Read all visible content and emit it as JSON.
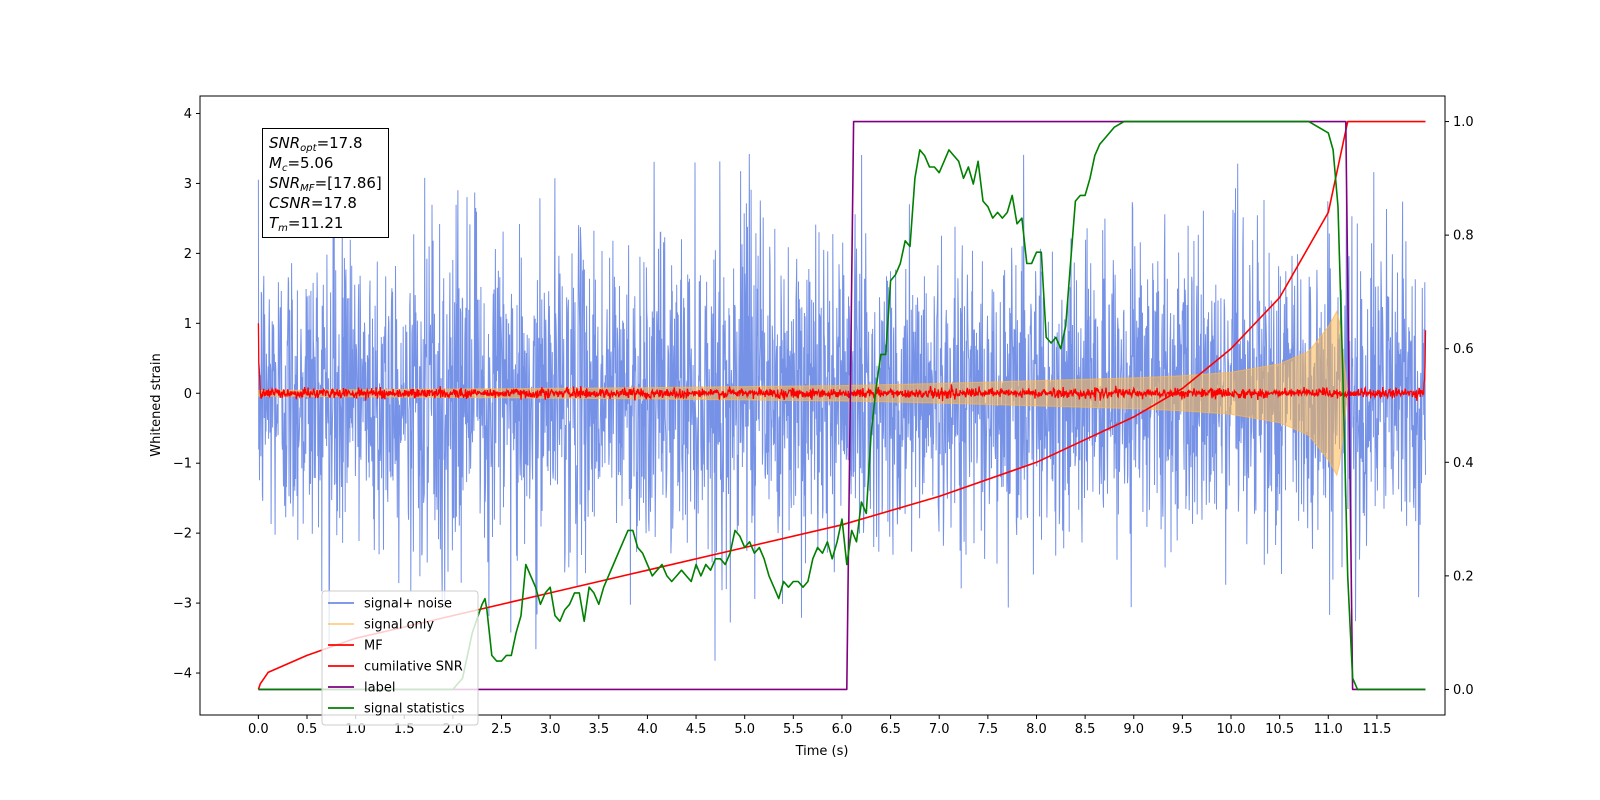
{
  "chart_data": {
    "type": "line",
    "title": "",
    "xlabel": "Time (s)",
    "ylabel": "Whitened strain",
    "ylabel_right": "",
    "xlim": [
      -0.6,
      12.2
    ],
    "ylim": [
      -4.6,
      4.25
    ],
    "ylim_right": [
      -0.045,
      1.045
    ],
    "grid": false,
    "legend_position": "lower-left",
    "x_ticks": [
      "0.0",
      "0.5",
      "1.0",
      "1.5",
      "2.0",
      "2.5",
      "3.0",
      "3.5",
      "4.0",
      "4.5",
      "5.0",
      "5.5",
      "6.0",
      "6.5",
      "7.0",
      "7.5",
      "8.0",
      "8.5",
      "9.0",
      "9.5",
      "10.0",
      "10.5",
      "11.0",
      "11.5"
    ],
    "y_ticks": [
      "−4",
      "−3",
      "−2",
      "−1",
      "0",
      "1",
      "2",
      "3",
      "4"
    ],
    "y_ticks_right": [
      "0.0",
      "0.2",
      "0.4",
      "0.6",
      "0.8",
      "1.0"
    ],
    "annotation": {
      "snr_opt_base": "SNR",
      "snr_opt_sub": "opt",
      "snr_opt_value": "=17.8",
      "mc_base": "M",
      "mc_sub": "c",
      "mc_value": "=5.06",
      "snr_mf_base": "SNR",
      "snr_mf_sub": "MF",
      "snr_mf_value": "=[17.86]",
      "csnr_base": "CSNR",
      "csnr_value": "=17.8",
      "tm_base": "T",
      "tm_sub": "m",
      "tm_value": "=11.21"
    },
    "series": [
      {
        "name": "signal+ noise",
        "color": "#6f8ce6",
        "axis": "left",
        "kind": "noise",
        "envelope_peak": 3.5,
        "x_range": [
          0.0,
          12.0
        ]
      },
      {
        "name": "signal only",
        "color": "#ffb84d",
        "axis": "left",
        "kind": "chirp",
        "x": [
          0.0,
          2.0,
          4.0,
          6.0,
          7.0,
          8.0,
          9.0,
          9.5,
          10.0,
          10.5,
          10.8,
          11.0,
          11.1,
          11.2
        ],
        "amplitude": [
          0.04,
          0.06,
          0.08,
          0.11,
          0.14,
          0.18,
          0.22,
          0.25,
          0.3,
          0.42,
          0.6,
          0.95,
          1.2,
          0.0
        ]
      },
      {
        "name": "MF",
        "color": "#ff0000",
        "axis": "left",
        "kind": "mf",
        "spike_start": 1.0,
        "spike_end": 0.9,
        "x_range": [
          0.0,
          12.0
        ]
      },
      {
        "name": "cumilative SNR",
        "color": "#ff0000",
        "axis": "right",
        "x": [
          0.0,
          0.02,
          0.1,
          0.5,
          1.0,
          1.5,
          2.0,
          3.0,
          4.0,
          5.0,
          6.0,
          7.0,
          8.0,
          9.0,
          9.5,
          10.0,
          10.5,
          11.0,
          11.1,
          11.2,
          11.3,
          12.0
        ],
        "y": [
          0.0,
          0.01,
          0.03,
          0.06,
          0.09,
          0.11,
          0.13,
          0.17,
          0.21,
          0.25,
          0.29,
          0.34,
          0.4,
          0.48,
          0.53,
          0.6,
          0.69,
          0.84,
          0.92,
          1.0,
          1.0,
          1.0
        ]
      },
      {
        "name": "label",
        "color": "#800080",
        "axis": "right",
        "x": [
          0.0,
          6.05,
          6.12,
          11.18,
          11.25,
          12.0
        ],
        "y": [
          0.0,
          0.0,
          1.0,
          1.0,
          0.0,
          0.0
        ]
      },
      {
        "name": "signal statistics",
        "color": "#008000",
        "axis": "right",
        "x": [
          0.0,
          0.25,
          0.5,
          1.0,
          1.5,
          2.0,
          2.1,
          2.2,
          2.3,
          2.33,
          2.35,
          2.4,
          2.45,
          2.5,
          2.55,
          2.6,
          2.65,
          2.7,
          2.75,
          2.8,
          2.85,
          2.9,
          2.95,
          3.0,
          3.05,
          3.1,
          3.15,
          3.2,
          3.25,
          3.3,
          3.35,
          3.4,
          3.45,
          3.5,
          3.55,
          3.6,
          3.65,
          3.7,
          3.75,
          3.8,
          3.85,
          3.9,
          3.95,
          4.0,
          4.05,
          4.1,
          4.15,
          4.2,
          4.25,
          4.3,
          4.35,
          4.4,
          4.45,
          4.5,
          4.55,
          4.6,
          4.65,
          4.7,
          4.75,
          4.8,
          4.85,
          4.9,
          4.95,
          5.0,
          5.05,
          5.1,
          5.15,
          5.2,
          5.25,
          5.3,
          5.35,
          5.4,
          5.45,
          5.5,
          5.55,
          5.6,
          5.65,
          5.7,
          5.75,
          5.8,
          5.85,
          5.9,
          5.95,
          6.0,
          6.05,
          6.1,
          6.15,
          6.2,
          6.25,
          6.3,
          6.35,
          6.4,
          6.45,
          6.5,
          6.55,
          6.6,
          6.65,
          6.7,
          6.75,
          6.8,
          6.85,
          6.9,
          6.95,
          7.0,
          7.05,
          7.1,
          7.15,
          7.2,
          7.25,
          7.3,
          7.35,
          7.4,
          7.45,
          7.5,
          7.55,
          7.6,
          7.65,
          7.7,
          7.75,
          7.8,
          7.85,
          7.9,
          7.95,
          8.0,
          8.05,
          8.1,
          8.15,
          8.2,
          8.25,
          8.3,
          8.35,
          8.4,
          8.45,
          8.5,
          8.55,
          8.6,
          8.65,
          8.7,
          8.8,
          8.9,
          9.0,
          9.2,
          9.5,
          10.0,
          10.5,
          10.8,
          11.0,
          11.05,
          11.1,
          11.15,
          11.2,
          11.25,
          11.3,
          11.5,
          12.0
        ],
        "y": [
          0.0,
          0.0,
          0.0,
          0.0,
          0.0,
          0.0,
          0.02,
          0.1,
          0.15,
          0.16,
          0.14,
          0.06,
          0.05,
          0.05,
          0.06,
          0.06,
          0.1,
          0.13,
          0.22,
          0.2,
          0.18,
          0.15,
          0.17,
          0.18,
          0.13,
          0.12,
          0.14,
          0.15,
          0.17,
          0.17,
          0.12,
          0.18,
          0.17,
          0.15,
          0.18,
          0.2,
          0.22,
          0.24,
          0.26,
          0.28,
          0.28,
          0.25,
          0.24,
          0.22,
          0.2,
          0.21,
          0.22,
          0.2,
          0.19,
          0.2,
          0.21,
          0.2,
          0.19,
          0.22,
          0.2,
          0.22,
          0.21,
          0.23,
          0.23,
          0.22,
          0.24,
          0.28,
          0.27,
          0.25,
          0.26,
          0.24,
          0.25,
          0.23,
          0.2,
          0.18,
          0.16,
          0.19,
          0.18,
          0.19,
          0.19,
          0.18,
          0.19,
          0.23,
          0.25,
          0.24,
          0.26,
          0.23,
          0.26,
          0.3,
          0.22,
          0.28,
          0.26,
          0.33,
          0.31,
          0.45,
          0.53,
          0.59,
          0.59,
          0.72,
          0.73,
          0.75,
          0.79,
          0.78,
          0.9,
          0.95,
          0.94,
          0.92,
          0.92,
          0.91,
          0.93,
          0.95,
          0.94,
          0.93,
          0.9,
          0.92,
          0.89,
          0.93,
          0.86,
          0.85,
          0.83,
          0.84,
          0.83,
          0.84,
          0.87,
          0.82,
          0.83,
          0.75,
          0.75,
          0.77,
          0.77,
          0.62,
          0.61,
          0.62,
          0.6,
          0.64,
          0.75,
          0.86,
          0.87,
          0.87,
          0.9,
          0.94,
          0.96,
          0.97,
          0.99,
          1.0,
          1.0,
          1.0,
          1.0,
          1.0,
          1.0,
          1.0,
          0.98,
          0.95,
          0.85,
          0.55,
          0.2,
          0.02,
          0.0,
          0.0,
          0.0
        ]
      }
    ]
  }
}
